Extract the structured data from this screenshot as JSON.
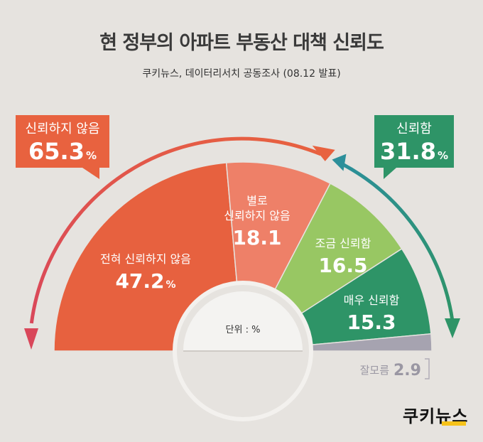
{
  "title": "현 정부의 아파트 부동산 대책 신뢰도",
  "subtitle": "쿠키뉴스, 데이터리서치 공동조사 (08.12 발표)",
  "unit_label": "단위 : %",
  "logo": "쿠키뉴스",
  "colors": {
    "not_trust_total": "#e8623f",
    "trust_total": "#2e9467",
    "no_answer": "#a6a3b0",
    "background": "#e6e3df"
  },
  "chart_data": {
    "type": "pie",
    "style": "semi-donut",
    "categories": [
      "전혀 신뢰하지 않음",
      "별로 신뢰하지 않음",
      "조금 신뢰함",
      "매우 신뢰함",
      "잘모름"
    ],
    "values": [
      47.2,
      18.1,
      16.5,
      15.3,
      2.9
    ],
    "slice_labels": [
      [
        "전혀 신뢰하지 않음"
      ],
      [
        "별로",
        "신뢰하지 않음"
      ],
      [
        "조금 신뢰함"
      ],
      [
        "매우 신뢰함"
      ],
      [
        "잘모름"
      ]
    ],
    "value_labels": [
      "47.2",
      "18.1",
      "16.5",
      "15.3",
      "2.9"
    ],
    "value_suffixes": [
      "%",
      "",
      "",
      "",
      ""
    ],
    "colors": [
      "#e7613f",
      "#ee8068",
      "#98c763",
      "#2e9467",
      "#a6a3b0"
    ],
    "totals": [
      {
        "label": "신뢰하지 않음",
        "value": "65.3",
        "suffix": "%",
        "color": "#e8623f"
      },
      {
        "label": "신뢰함",
        "value": "31.8",
        "suffix": "%",
        "color": "#2e9467"
      }
    ]
  }
}
